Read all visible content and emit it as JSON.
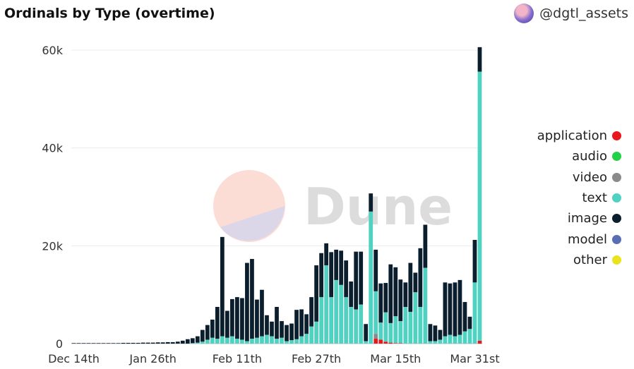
{
  "header": {
    "title": "Ordinals by Type (overtime)",
    "author": "@dgtl_assets"
  },
  "watermark": {
    "text": "Dune"
  },
  "chart_data": {
    "type": "bar",
    "stacked": true,
    "title": "Ordinals by Type (overtime)",
    "xlabel": "",
    "ylabel": "",
    "ylim": [
      0,
      60000
    ],
    "y_ticks": [
      0,
      20000,
      40000,
      60000
    ],
    "y_tick_labels": [
      "0",
      "20k",
      "40k",
      "60k"
    ],
    "x_tick_labels": [
      {
        "index": 0,
        "label": "Dec 14th"
      },
      {
        "index": 16,
        "label": "Jan 26th"
      },
      {
        "index": 33,
        "label": "Feb 11th"
      },
      {
        "index": 49,
        "label": "Feb 27th"
      },
      {
        "index": 65,
        "label": "Mar 15th"
      },
      {
        "index": 81,
        "label": "Mar 31st"
      }
    ],
    "legend_position": "right",
    "categories_count": 83,
    "series": [
      {
        "name": "application",
        "color": "#e8171b",
        "values": [
          0,
          0,
          0,
          0,
          0,
          0,
          0,
          0,
          0,
          0,
          0,
          0,
          0,
          0,
          0,
          0,
          0,
          0,
          0,
          0,
          0,
          0,
          0,
          0,
          0,
          0,
          0,
          0,
          0,
          0,
          0,
          0,
          0,
          0,
          0,
          0,
          0,
          0,
          0,
          0,
          0,
          0,
          0,
          0,
          0,
          0,
          0,
          0,
          0,
          0,
          0,
          0,
          0,
          0,
          0,
          0,
          0,
          0,
          0,
          0,
          0,
          1000,
          800,
          400,
          200,
          100,
          100,
          0,
          0,
          0,
          0,
          0,
          0,
          0,
          0,
          0,
          0,
          0,
          0,
          0,
          0,
          0,
          600
        ]
      },
      {
        "name": "audio",
        "color": "#22d146",
        "values": [
          0,
          0,
          0,
          0,
          0,
          0,
          0,
          0,
          0,
          0,
          0,
          0,
          0,
          0,
          0,
          0,
          0,
          0,
          0,
          0,
          0,
          0,
          0,
          0,
          0,
          0,
          0,
          0,
          0,
          0,
          0,
          0,
          0,
          0,
          0,
          0,
          0,
          0,
          0,
          0,
          0,
          0,
          0,
          0,
          0,
          0,
          0,
          0,
          0,
          0,
          0,
          0,
          0,
          0,
          0,
          0,
          0,
          0,
          0,
          0,
          0,
          0,
          0,
          0,
          0,
          0,
          0,
          0,
          0,
          0,
          0,
          0,
          0,
          0,
          0,
          0,
          0,
          0,
          0,
          0,
          0,
          0,
          0
        ]
      },
      {
        "name": "video",
        "color": "#8a8a8a",
        "values": [
          0,
          0,
          0,
          0,
          0,
          0,
          0,
          0,
          0,
          0,
          0,
          0,
          0,
          0,
          0,
          0,
          0,
          0,
          0,
          0,
          0,
          0,
          0,
          0,
          0,
          0,
          0,
          0,
          0,
          0,
          0,
          0,
          0,
          0,
          0,
          0,
          0,
          0,
          0,
          0,
          0,
          0,
          0,
          0,
          0,
          0,
          0,
          0,
          0,
          0,
          0,
          0,
          0,
          0,
          0,
          0,
          0,
          0,
          0,
          0,
          0,
          1000,
          0,
          0,
          0,
          0,
          0,
          0,
          0,
          0,
          0,
          0,
          0,
          0,
          0,
          0,
          0,
          0,
          0,
          0,
          0,
          0,
          0
        ]
      },
      {
        "name": "text",
        "color": "#4fd2c2",
        "values": [
          0,
          0,
          0,
          0,
          0,
          0,
          0,
          0,
          0,
          0,
          0,
          0,
          0,
          0,
          0,
          0,
          0,
          0,
          0,
          0,
          0,
          0,
          0,
          0,
          100,
          200,
          400,
          800,
          1200,
          1000,
          1500,
          1200,
          1500,
          1000,
          800,
          500,
          1000,
          1200,
          1500,
          1800,
          1500,
          1000,
          1200,
          500,
          700,
          900,
          1500,
          2000,
          3500,
          4500,
          9500,
          16000,
          9500,
          13000,
          12000,
          9500,
          7500,
          7000,
          8000,
          500,
          27000,
          8700,
          3500,
          6000,
          4000,
          5500,
          4500,
          7500,
          6500,
          10500,
          7500,
          15500,
          500,
          500,
          800,
          1500,
          1800,
          1500,
          1800,
          2500,
          3000,
          12500,
          55000
        ]
      },
      {
        "name": "image",
        "color": "#0b1e2d",
        "values": [
          100,
          100,
          100,
          100,
          100,
          100,
          100,
          100,
          100,
          100,
          150,
          150,
          150,
          150,
          200,
          200,
          200,
          250,
          250,
          300,
          300,
          400,
          600,
          900,
          1000,
          1300,
          2400,
          3000,
          3700,
          6500,
          20300,
          5500,
          7600,
          8500,
          8500,
          16000,
          16300,
          7800,
          9500,
          4000,
          3000,
          6500,
          3400,
          3300,
          3400,
          6000,
          5500,
          4000,
          6000,
          11500,
          9000,
          4500,
          9200,
          6200,
          7000,
          7500,
          5200,
          11800,
          10800,
          3500,
          3700,
          8500,
          8000,
          6000,
          12000,
          10000,
          8500,
          5000,
          10000,
          4000,
          12000,
          8800,
          3500,
          3200,
          2000,
          11000,
          10500,
          11000,
          11200,
          6000,
          2500,
          8700,
          5000
        ]
      },
      {
        "name": "model",
        "color": "#5a6cb3",
        "values": [
          0,
          0,
          0,
          0,
          0,
          0,
          0,
          0,
          0,
          0,
          0,
          0,
          0,
          0,
          0,
          0,
          0,
          0,
          0,
          0,
          0,
          0,
          0,
          0,
          0,
          0,
          0,
          0,
          0,
          0,
          0,
          0,
          0,
          0,
          0,
          0,
          0,
          0,
          0,
          0,
          0,
          0,
          0,
          0,
          0,
          0,
          0,
          0,
          0,
          0,
          0,
          0,
          0,
          0,
          0,
          0,
          0,
          0,
          0,
          0,
          0,
          0,
          0,
          0,
          0,
          0,
          0,
          0,
          0,
          0,
          0,
          0,
          0,
          0,
          0,
          0,
          0,
          0,
          0,
          0,
          0,
          0,
          0
        ]
      },
      {
        "name": "other",
        "color": "#e9e31c",
        "values": [
          0,
          0,
          0,
          0,
          0,
          0,
          0,
          0,
          0,
          0,
          0,
          0,
          0,
          0,
          0,
          0,
          0,
          0,
          0,
          0,
          0,
          0,
          0,
          0,
          0,
          0,
          0,
          0,
          0,
          0,
          0,
          0,
          0,
          0,
          0,
          0,
          0,
          0,
          0,
          0,
          0,
          0,
          0,
          0,
          0,
          0,
          0,
          0,
          0,
          0,
          0,
          0,
          0,
          0,
          0,
          0,
          0,
          0,
          0,
          0,
          0,
          0,
          0,
          0,
          0,
          0,
          0,
          0,
          0,
          0,
          0,
          0,
          0,
          0,
          0,
          0,
          0,
          0,
          0,
          0,
          0,
          0,
          0
        ]
      }
    ]
  }
}
